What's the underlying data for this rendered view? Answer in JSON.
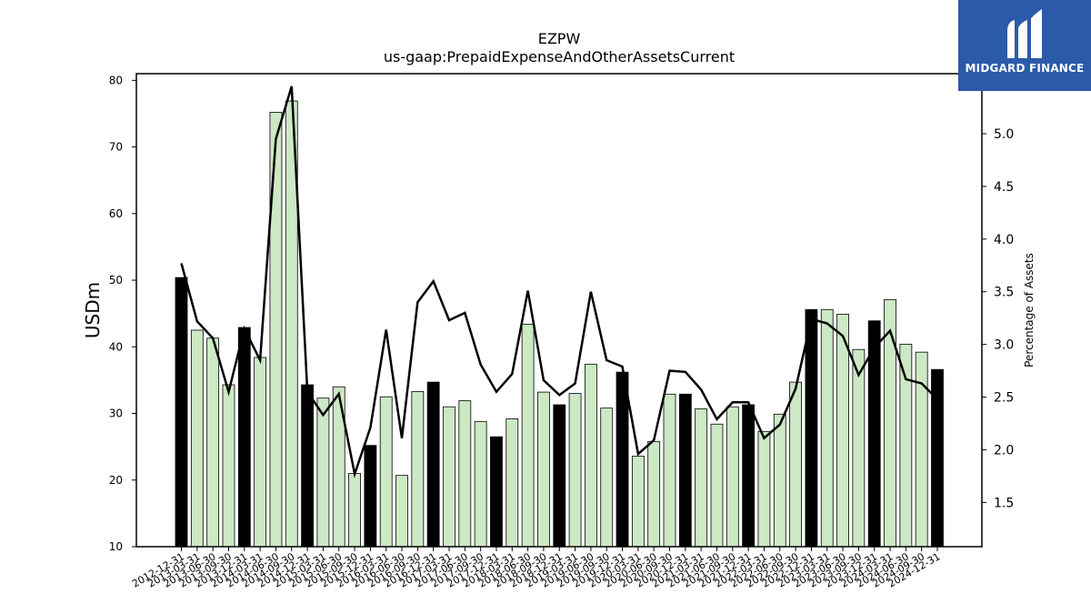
{
  "chart_data": {
    "type": "bar",
    "title": "EZPW",
    "subtitle": "us-gaap:PrepaidExpenseAndOtherAssetsCurrent",
    "ylabel": "USDm",
    "y2label": "Percentage of Assets",
    "ylim": [
      10,
      81
    ],
    "y2lim": [
      1.08,
      5.57
    ],
    "yticks": [
      10,
      20,
      30,
      40,
      50,
      60,
      70,
      80
    ],
    "y2ticks": [
      1.5,
      2.0,
      2.5,
      3.0,
      3.5,
      4.0,
      4.5,
      5.0
    ],
    "grid": false,
    "legend": "none",
    "colors": {
      "annual_bar": "#000000",
      "quarter_bar": "#cce8c4",
      "line": "#000000"
    },
    "categories": [
      "2012-12-31",
      "2013-03-31",
      "2013-06-30",
      "2013-09-30",
      "2013-12-31",
      "2014-03-31",
      "2014-06-30",
      "2014-09-30",
      "2014-12-31",
      "2015-03-31",
      "2015-06-30",
      "2015-09-30",
      "2015-12-31",
      "2016-03-31",
      "2016-06-30",
      "2016-09-30",
      "2016-12-31",
      "2017-03-31",
      "2017-06-30",
      "2017-09-30",
      "2017-12-31",
      "2018-03-31",
      "2018-06-30",
      "2018-09-30",
      "2018-12-31",
      "2019-03-31",
      "2019-06-30",
      "2019-09-30",
      "2019-12-31",
      "2020-03-31",
      "2020-06-30",
      "2020-09-30",
      "2020-12-31",
      "2021-03-31",
      "2021-06-30",
      "2021-09-30",
      "2021-12-31",
      "2022-03-31",
      "2022-06-30",
      "2022-09-30",
      "2022-12-31",
      "2023-03-31",
      "2023-06-30",
      "2023-09-30",
      "2023-12-31",
      "2024-03-31",
      "2024-06-30",
      "2024-09-30",
      "2024-12-31"
    ],
    "annual_flags": [
      1,
      0,
      0,
      0,
      1,
      0,
      0,
      0,
      1,
      0,
      0,
      0,
      1,
      0,
      0,
      0,
      1,
      0,
      0,
      0,
      1,
      0,
      0,
      0,
      1,
      0,
      0,
      0,
      1,
      0,
      0,
      0,
      1,
      0,
      0,
      0,
      1,
      0,
      0,
      0,
      1,
      0,
      0,
      0,
      1,
      0,
      0,
      0,
      1
    ],
    "values": [
      50.4,
      42.5,
      41.3,
      34.3,
      42.9,
      38.4,
      75.2,
      76.9,
      34.3,
      32.3,
      34.0,
      21.0,
      25.2,
      32.5,
      20.7,
      33.3,
      34.7,
      31.0,
      31.9,
      28.8,
      26.5,
      29.2,
      43.4,
      33.2,
      31.3,
      33.0,
      37.4,
      30.8,
      36.2,
      23.6,
      25.8,
      32.9,
      32.9,
      30.7,
      28.4,
      31.0,
      31.3,
      27.3,
      29.9,
      34.7,
      45.6,
      45.6,
      44.9,
      39.6,
      43.9,
      47.1,
      40.4,
      39.2,
      36.6
    ],
    "line_values": [
      3.77,
      3.22,
      3.06,
      2.55,
      3.15,
      2.85,
      4.95,
      5.45,
      2.55,
      2.33,
      2.53,
      1.77,
      2.21,
      3.14,
      2.11,
      3.4,
      3.6,
      3.23,
      3.3,
      2.81,
      2.55,
      2.72,
      3.51,
      2.66,
      2.52,
      2.63,
      3.5,
      2.85,
      2.79,
      1.96,
      2.09,
      2.75,
      2.74,
      2.57,
      2.29,
      2.45,
      2.45,
      2.11,
      2.24,
      2.58,
      3.24,
      3.2,
      3.08,
      2.71,
      2.97,
      3.13,
      2.67,
      2.63,
      2.48
    ]
  },
  "logo": {
    "text": "MIDGARD FINANCE",
    "color": "#2b5aa8"
  }
}
